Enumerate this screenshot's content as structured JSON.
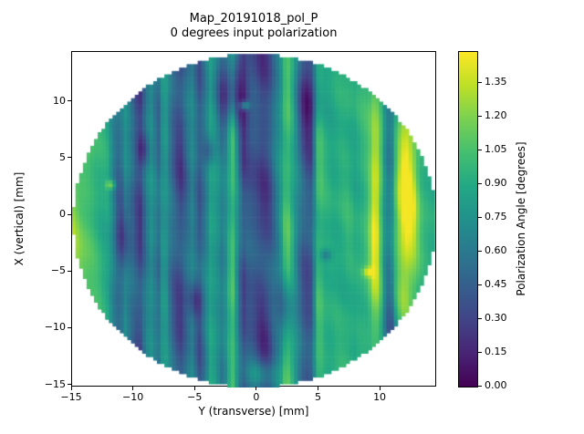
{
  "figure": {
    "background": "#ffffff",
    "frame_color": "#000000"
  },
  "chart_data": {
    "type": "heatmap",
    "title": "Map_20191018_pol_P",
    "subtitle": "0 degrees input polarization",
    "xlabel": "Y (transverse) [mm]",
    "ylabel": "X (vertical) [mm]",
    "colorbar_label": "Polarization Angle [degrees]",
    "xlim": [
      -15,
      14.58
    ],
    "ylim": [
      -15.2,
      14.4
    ],
    "value_range": [
      0.0,
      1.49
    ],
    "grid": false,
    "legend_position": "colorbar-right",
    "xticks": [
      {
        "value": -15,
        "label": "−15"
      },
      {
        "value": -10,
        "label": "−10"
      },
      {
        "value": -5,
        "label": "−5"
      },
      {
        "value": 0,
        "label": "0"
      },
      {
        "value": 5,
        "label": "5"
      },
      {
        "value": 10,
        "label": "10"
      }
    ],
    "yticks": [
      {
        "value": 10,
        "label": "10"
      },
      {
        "value": 5,
        "label": "5"
      },
      {
        "value": 0,
        "label": "0"
      },
      {
        "value": -5,
        "label": "−5"
      },
      {
        "value": -10,
        "label": "−10"
      },
      {
        "value": -15,
        "label": "−15"
      }
    ],
    "colorbar_ticks": [
      {
        "value": 0.0,
        "label": "0.00"
      },
      {
        "value": 0.15,
        "label": "0.15"
      },
      {
        "value": 0.3,
        "label": "0.30"
      },
      {
        "value": 0.45,
        "label": "0.45"
      },
      {
        "value": 0.6,
        "label": "0.60"
      },
      {
        "value": 0.75,
        "label": "0.75"
      },
      {
        "value": 0.9,
        "label": "0.90"
      },
      {
        "value": 1.05,
        "label": "1.05"
      },
      {
        "value": 1.2,
        "label": "1.20"
      },
      {
        "value": 1.35,
        "label": "1.35"
      }
    ],
    "colormap": "viridis",
    "colormap_stops": [
      [
        0.0,
        "#440154"
      ],
      [
        0.1,
        "#482475"
      ],
      [
        0.2,
        "#414487"
      ],
      [
        0.3,
        "#355f8d"
      ],
      [
        0.4,
        "#2a788e"
      ],
      [
        0.5,
        "#21918c"
      ],
      [
        0.6,
        "#22a884"
      ],
      [
        0.7,
        "#44bf70"
      ],
      [
        0.8,
        "#7ad151"
      ],
      [
        0.9,
        "#bddf26"
      ],
      [
        1.0,
        "#fde725"
      ]
    ],
    "disc": {
      "center_x": -0.2,
      "center_y": -0.5,
      "radius": 14.7,
      "cell_mm": 0.3
    },
    "profile_note": "Polarization angle [degrees] vs Y(transverse) position; map is vertically striped, values estimated from colorbar",
    "profile": [
      [
        -15.0,
        1.22
      ],
      [
        -14.2,
        1.12
      ],
      [
        -13.4,
        1.02
      ],
      [
        -12.7,
        0.95
      ],
      [
        -12.1,
        0.88
      ],
      [
        -11.6,
        0.65
      ],
      [
        -11.1,
        0.5
      ],
      [
        -10.7,
        0.72
      ],
      [
        -10.2,
        0.58
      ],
      [
        -9.8,
        0.4
      ],
      [
        -9.4,
        0.32
      ],
      [
        -9.0,
        0.62
      ],
      [
        -8.5,
        0.75
      ],
      [
        -8.0,
        0.52
      ],
      [
        -7.5,
        0.85
      ],
      [
        -7.1,
        0.62
      ],
      [
        -6.6,
        0.4
      ],
      [
        -6.2,
        0.32
      ],
      [
        -5.7,
        0.52
      ],
      [
        -5.2,
        0.68
      ],
      [
        -4.7,
        0.42
      ],
      [
        -4.2,
        0.62
      ],
      [
        -3.7,
        0.88
      ],
      [
        -3.2,
        0.75
      ],
      [
        -2.7,
        0.6
      ],
      [
        -2.3,
        0.9
      ],
      [
        -1.9,
        1.05
      ],
      [
        -1.5,
        0.62
      ],
      [
        -1.1,
        0.35
      ],
      [
        -0.6,
        0.45
      ],
      [
        -0.1,
        0.4
      ],
      [
        0.4,
        0.3
      ],
      [
        0.9,
        0.33
      ],
      [
        1.4,
        0.55
      ],
      [
        1.9,
        0.75
      ],
      [
        2.4,
        1.1
      ],
      [
        2.9,
        0.92
      ],
      [
        3.4,
        0.62
      ],
      [
        3.9,
        0.38
      ],
      [
        4.4,
        0.4
      ],
      [
        5.0,
        1.05
      ],
      [
        5.6,
        0.92
      ],
      [
        6.2,
        0.9
      ],
      [
        6.8,
        0.93
      ],
      [
        7.4,
        0.95
      ],
      [
        8.0,
        0.9
      ],
      [
        8.6,
        0.96
      ],
      [
        9.1,
        1.02
      ],
      [
        9.6,
        1.15
      ],
      [
        10.1,
        0.95
      ],
      [
        10.5,
        0.62
      ],
      [
        10.9,
        0.62
      ],
      [
        11.3,
        1.0
      ],
      [
        11.8,
        1.28
      ],
      [
        12.2,
        1.35
      ],
      [
        12.7,
        1.22
      ],
      [
        13.2,
        1.02
      ],
      [
        13.7,
        0.95
      ],
      [
        14.2,
        0.9
      ],
      [
        14.6,
        0.86
      ]
    ],
    "features": [
      [
        4.15,
        10.5,
        1.0,
        3.2,
        -0.3
      ],
      [
        -2.0,
        11.0,
        1.3,
        3.2,
        -0.55
      ],
      [
        -10.9,
        -2.0,
        0.6,
        3.0,
        -0.35
      ],
      [
        -9.2,
        5.8,
        0.5,
        1.5,
        -0.3
      ],
      [
        -3.9,
        5.6,
        0.5,
        1.2,
        -0.28
      ],
      [
        -5.0,
        -7.5,
        0.6,
        1.6,
        -0.3
      ],
      [
        2.3,
        -8.0,
        0.8,
        3.0,
        -0.32
      ],
      [
        9.6,
        0.0,
        0.45,
        6.5,
        0.4
      ],
      [
        12.0,
        1.0,
        0.9,
        6.5,
        0.22
      ],
      [
        12.3,
        -11.0,
        1.8,
        3.0,
        -0.42
      ],
      [
        5.6,
        -3.5,
        0.45,
        0.5,
        -0.3
      ],
      [
        -1.0,
        9.7,
        0.4,
        0.4,
        0.55
      ],
      [
        -11.8,
        2.7,
        0.4,
        0.4,
        0.42
      ],
      [
        9.0,
        -5.0,
        0.45,
        0.45,
        0.38
      ],
      [
        0.3,
        -14.0,
        1.3,
        1.2,
        0.3
      ]
    ],
    "texture": {
      "stripe_mod_amp": 0.25,
      "noise_amp": 0.05
    }
  }
}
